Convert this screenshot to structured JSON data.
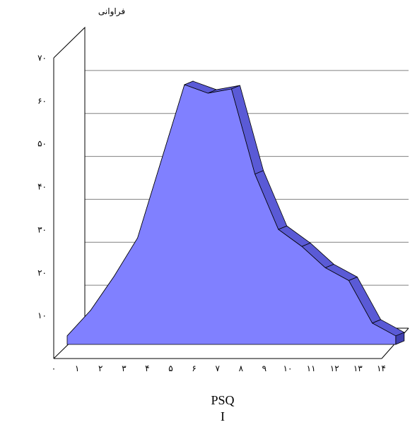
{
  "chart_data": {
    "type": "area",
    "ylabel": "فراوانی",
    "xlabel": "PSQI",
    "x_ticks": [
      "۰",
      "۱",
      "۲",
      "۳",
      "۴",
      "۵",
      "۶",
      "۷",
      "۸",
      "۹",
      "۱۰",
      "۱۱",
      "۱۲",
      "۱۳",
      "۱۴"
    ],
    "y_ticks": [
      "۱۰",
      "۲۰",
      "۳۰",
      "۴۰",
      "۵۰",
      "۶۰",
      "۷۰"
    ],
    "ylim": [
      0,
      70
    ],
    "x": [
      0,
      1,
      2,
      3,
      4,
      5,
      6,
      7,
      8,
      9,
      10,
      11,
      12,
      13,
      14
    ],
    "values": [
      2,
      8,
      16,
      25,
      43,
      61,
      59,
      60,
      40,
      27,
      23,
      18,
      15,
      5,
      2
    ],
    "grid": true,
    "fill_color": "#8080ff",
    "side_color": "#5a5ad6",
    "top_color": "#4040b0"
  }
}
